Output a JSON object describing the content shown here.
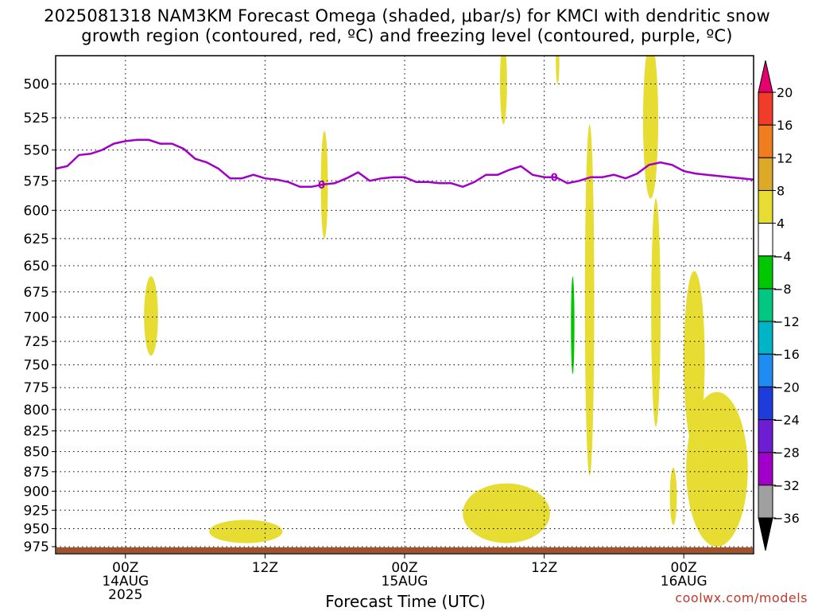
{
  "chart_data": {
    "type": "heatmap",
    "title_line1": "2025081318 NAM3KM Forecast Omega (shaded, μbar/s) for KMCI with dendritic snow",
    "title_line2": "growth region (contoured, red, ºC) and freezing level (contoured, purple, ºC)",
    "xlabel": "Forecast Time (UTC)",
    "x_ticks": [
      {
        "line1": "00Z",
        "line2": "14AUG",
        "line3": "2025",
        "hours": 6
      },
      {
        "line1": "12Z",
        "line2": "",
        "line3": "",
        "hours": 18
      },
      {
        "line1": "00Z",
        "line2": "15AUG",
        "line3": "",
        "hours": 30
      },
      {
        "line1": "12Z",
        "line2": "",
        "line3": "",
        "hours": 42
      },
      {
        "line1": "00Z",
        "line2": "16AUG",
        "line3": "",
        "hours": 54
      }
    ],
    "xlim_hours": [
      0,
      60
    ],
    "ylim_hPa": [
      480,
      985
    ],
    "y_scale": "log-pressure",
    "y_ticks": [
      500,
      525,
      550,
      575,
      600,
      625,
      650,
      675,
      700,
      725,
      750,
      775,
      800,
      825,
      850,
      875,
      900,
      925,
      950,
      975
    ],
    "grid": "dotted",
    "freezing_level_label": "0",
    "freezing_level": {
      "color": "#a000c8",
      "hours": [
        0,
        1,
        2,
        3,
        4,
        5,
        6,
        7,
        8,
        9,
        10,
        11,
        12,
        13,
        14,
        15,
        16,
        17,
        18,
        19,
        20,
        21,
        22,
        23,
        24,
        25,
        26,
        27,
        28,
        29,
        30,
        31,
        32,
        33,
        34,
        35,
        36,
        37,
        38,
        39,
        40,
        41,
        42,
        43,
        44,
        45,
        46,
        47,
        48,
        49,
        50,
        51,
        52,
        53,
        54,
        55,
        56,
        57,
        58,
        59,
        60
      ],
      "pressure_hPa": [
        565,
        563,
        554,
        553,
        550,
        545,
        543,
        542,
        542,
        545,
        545,
        549,
        557,
        560,
        565,
        573,
        573,
        570,
        573,
        574,
        576,
        580,
        580,
        578,
        577,
        573,
        568,
        575,
        573,
        572,
        572,
        576,
        576,
        577,
        577,
        580,
        576,
        570,
        570,
        566,
        563,
        570,
        572,
        572,
        577,
        575,
        572,
        572,
        570,
        573,
        569,
        562,
        560,
        562,
        567,
        569,
        570,
        571,
        572,
        573,
        574
      ]
    },
    "omega_regions": [
      {
        "level": "4 to 8",
        "color": "#e6dc32",
        "hours": [
          7.6,
          8.8
        ],
        "pressure_hPa": [
          660,
          740
        ]
      },
      {
        "level": "4 to 8",
        "color": "#e6dc32",
        "hours": [
          13.2,
          19.5
        ],
        "pressure_hPa": [
          938,
          970
        ]
      },
      {
        "level": "4 to 8",
        "color": "#e6dc32",
        "hours": [
          22.8,
          23.4
        ],
        "pressure_hPa": [
          535,
          625
        ]
      },
      {
        "level": "4 to 8",
        "color": "#e6dc32",
        "hours": [
          35.0,
          42.5
        ],
        "pressure_hPa": [
          890,
          970
        ]
      },
      {
        "level": "4 to 8",
        "color": "#e6dc32",
        "hours": [
          38.2,
          38.8
        ],
        "pressure_hPa": [
          470,
          530
        ]
      },
      {
        "level": "4 to 8",
        "color": "#e6dc32",
        "hours": [
          43.0,
          43.3
        ],
        "pressure_hPa": [
          470,
          500
        ]
      },
      {
        "level": "-8 to -4",
        "color": "#00c800",
        "hours": [
          44.3,
          44.6
        ],
        "pressure_hPa": [
          660,
          760
        ]
      },
      {
        "level": "4 to 8",
        "color": "#e6dc32",
        "hours": [
          45.5,
          46.3
        ],
        "pressure_hPa": [
          530,
          880
        ]
      },
      {
        "level": "4 to 8",
        "color": "#e6dc32",
        "hours": [
          50.5,
          51.8
        ],
        "pressure_hPa": [
          470,
          590
        ]
      },
      {
        "level": "4 to 8",
        "color": "#e6dc32",
        "hours": [
          51.2,
          52.0
        ],
        "pressure_hPa": [
          590,
          820
        ]
      },
      {
        "level": "4 to 8",
        "color": "#e6dc32",
        "hours": [
          54.0,
          55.8
        ],
        "pressure_hPa": [
          655,
          845
        ]
      },
      {
        "level": "4 to 8",
        "color": "#e6dc32",
        "hours": [
          52.8,
          53.4
        ],
        "pressure_hPa": [
          870,
          945
        ]
      },
      {
        "level": "4 to 8",
        "color": "#e6dc32",
        "hours": [
          54.2,
          59.5
        ],
        "pressure_hPa": [
          780,
          975
        ]
      }
    ],
    "colorbar": {
      "labels": [
        "20",
        "16",
        "12",
        "8",
        "4",
        "-4",
        "-8",
        "-12",
        "-16",
        "-20",
        "-24",
        "-28",
        "-32",
        "-36"
      ],
      "colors": [
        "#e6006e",
        "#f03c28",
        "#f07d1e",
        "#dcaa28",
        "#e6dc32",
        "#ffffff",
        "#00c800",
        "#00c882",
        "#00b4c8",
        "#1e8cf0",
        "#1e3cdc",
        "#6e1ed2",
        "#a000c8",
        "#a0a0a0",
        "#000000"
      ]
    },
    "ground_color": "#a0522d"
  },
  "watermark": "coolwx.com/models"
}
